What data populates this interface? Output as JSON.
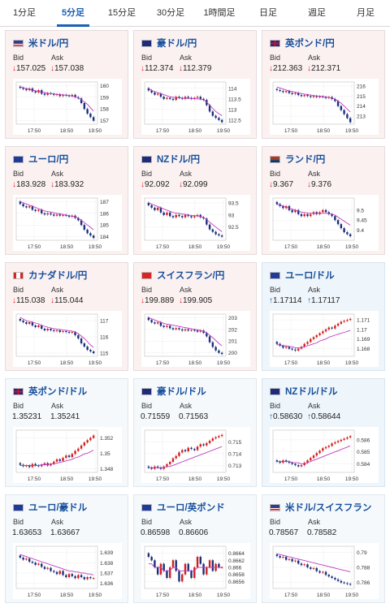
{
  "tabs": [
    "1分足",
    "5分足",
    "15分足",
    "30分足",
    "1時間足",
    "日足",
    "週足",
    "月足"
  ],
  "active_tab": 1,
  "time_labels": [
    "17:50",
    "18:50",
    "19:50"
  ],
  "labels": {
    "bid": "Bid",
    "ask": "Ask"
  },
  "colors": {
    "down_card": "#fbf1f1",
    "up_card": "#eef5fb",
    "candle_up": "#d21f1f",
    "candle_down": "#1c2f7a",
    "ma": "#c03cc0",
    "ma2": "#3a89d0"
  },
  "cards": [
    {
      "name": "米ドル/円",
      "flag": "flag-us",
      "trend": "down",
      "bid": "157.025",
      "ask": "157.038",
      "ticks": [
        "160",
        "159",
        "158",
        "157"
      ],
      "chart_data": {
        "type": "candlestick",
        "ylim": [
          156.7,
          160.3
        ],
        "closes": [
          159.8,
          159.7,
          159.6,
          159.75,
          159.5,
          159.4,
          159.6,
          159.3,
          159.2,
          159.35,
          159.3,
          159.2,
          159.25,
          159.1,
          159.2,
          159.15,
          159.1,
          159.2,
          159.0,
          158.9,
          158.5,
          158.0,
          157.6,
          157.3,
          157.0
        ],
        "ma": [
          159.9,
          159.8,
          159.75,
          159.7,
          159.6,
          159.55,
          159.5,
          159.45,
          159.4,
          159.35,
          159.3,
          159.28,
          159.25,
          159.22,
          159.2,
          159.18,
          159.15,
          159.1,
          159.05,
          158.95,
          158.8,
          158.6,
          158.4,
          158.1,
          157.8
        ]
      }
    },
    {
      "name": "豪ドル/円",
      "flag": "flag-au",
      "trend": "down",
      "bid": "112.374",
      "ask": "112.379",
      "ticks": [
        "114",
        "113.5",
        "113",
        "112.5"
      ],
      "chart_data": {
        "type": "candlestick",
        "ylim": [
          112.3,
          114.3
        ],
        "closes": [
          113.9,
          113.8,
          113.7,
          113.75,
          113.6,
          113.5,
          113.55,
          113.5,
          113.45,
          113.6,
          113.55,
          113.5,
          113.6,
          113.55,
          113.5,
          113.55,
          113.6,
          113.5,
          113.45,
          113.2,
          112.9,
          112.7,
          112.6,
          112.5,
          112.4
        ],
        "ma": [
          114.0,
          113.9,
          113.85,
          113.8,
          113.75,
          113.7,
          113.65,
          113.6,
          113.58,
          113.56,
          113.55,
          113.54,
          113.53,
          113.52,
          113.52,
          113.51,
          113.5,
          113.48,
          113.45,
          113.35,
          113.2,
          113.05,
          112.9,
          112.8,
          112.7
        ]
      }
    },
    {
      "name": "英ポンド/円",
      "flag": "flag-gb",
      "trend": "down",
      "bid": "212.363",
      "ask": "212.371",
      "ticks": [
        "216",
        "215",
        "214",
        "213"
      ],
      "chart_data": {
        "type": "candlestick",
        "ylim": [
          212.2,
          216.4
        ],
        "closes": [
          215.6,
          215.5,
          215.4,
          215.5,
          215.3,
          215.2,
          215.3,
          215.1,
          215.0,
          215.1,
          215.0,
          214.9,
          215.0,
          214.9,
          214.95,
          214.9,
          214.8,
          214.9,
          214.7,
          214.5,
          214.0,
          213.6,
          213.2,
          212.8,
          212.4
        ],
        "ma": [
          215.9,
          215.8,
          215.7,
          215.6,
          215.5,
          215.45,
          215.4,
          215.3,
          215.25,
          215.2,
          215.15,
          215.1,
          215.05,
          215.0,
          215.0,
          214.95,
          214.9,
          214.85,
          214.8,
          214.7,
          214.5,
          214.3,
          214.0,
          213.7,
          213.4
        ]
      }
    },
    {
      "name": "ユーロ/円",
      "flag": "flag-eu",
      "trend": "down",
      "bid": "183.928",
      "ask": "183.932",
      "ticks": [
        "187",
        "186",
        "185",
        "184"
      ],
      "chart_data": {
        "type": "candlestick",
        "ylim": [
          183.7,
          187.3
        ],
        "closes": [
          186.8,
          186.6,
          186.5,
          186.6,
          186.3,
          186.2,
          186.3,
          186.0,
          185.9,
          186.0,
          185.9,
          185.8,
          185.9,
          185.8,
          185.85,
          185.8,
          185.7,
          185.8,
          185.6,
          185.4,
          185.0,
          184.6,
          184.3,
          184.1,
          183.9
        ],
        "ma": [
          187.0,
          186.9,
          186.8,
          186.7,
          186.6,
          186.5,
          186.4,
          186.3,
          186.2,
          186.15,
          186.1,
          186.05,
          186.0,
          185.95,
          185.9,
          185.85,
          185.8,
          185.75,
          185.7,
          185.6,
          185.4,
          185.2,
          185.0,
          184.8,
          184.6
        ]
      }
    },
    {
      "name": "NZドル/円",
      "flag": "flag-nz",
      "trend": "down",
      "bid": "92.092",
      "ask": "92.099",
      "ticks": [
        "93.5",
        "93",
        "92.5"
      ],
      "chart_data": {
        "type": "candlestick",
        "ylim": [
          91.95,
          93.7
        ],
        "closes": [
          93.4,
          93.3,
          93.2,
          93.3,
          93.1,
          93.0,
          93.1,
          92.95,
          92.9,
          93.0,
          92.95,
          92.9,
          93.0,
          92.95,
          92.9,
          92.95,
          93.0,
          92.9,
          92.85,
          92.6,
          92.4,
          92.3,
          92.2,
          92.15,
          92.1
        ],
        "ma": [
          93.5,
          93.45,
          93.4,
          93.35,
          93.3,
          93.25,
          93.2,
          93.15,
          93.1,
          93.08,
          93.06,
          93.04,
          93.02,
          93.0,
          92.98,
          92.97,
          92.96,
          92.94,
          92.9,
          92.8,
          92.7,
          92.6,
          92.5,
          92.4,
          92.3
        ]
      }
    },
    {
      "name": "ランド/円",
      "flag": "flag-za",
      "trend": "down",
      "bid": "9.367",
      "ask": "9.376",
      "ticks": [
        "9.5",
        "9.45",
        "9.4"
      ],
      "chart_data": {
        "type": "candlestick",
        "ylim": [
          9.35,
          9.56
        ],
        "closes": [
          9.53,
          9.52,
          9.51,
          9.52,
          9.5,
          9.49,
          9.5,
          9.48,
          9.47,
          9.48,
          9.47,
          9.48,
          9.49,
          9.48,
          9.49,
          9.5,
          9.49,
          9.48,
          9.47,
          9.45,
          9.43,
          9.41,
          9.39,
          9.38,
          9.37
        ],
        "ma": [
          9.53,
          9.525,
          9.52,
          9.515,
          9.51,
          9.505,
          9.5,
          9.495,
          9.49,
          9.488,
          9.486,
          9.485,
          9.484,
          9.483,
          9.483,
          9.484,
          9.484,
          9.483,
          9.48,
          9.475,
          9.465,
          9.455,
          9.445,
          9.435,
          9.425
        ]
      }
    },
    {
      "name": "カナダドル/円",
      "flag": "flag-ca",
      "trend": "down",
      "bid": "115.038",
      "ask": "115.044",
      "ticks": [
        "117",
        "116",
        "115"
      ],
      "chart_data": {
        "type": "candlestick",
        "ylim": [
          114.8,
          117.4
        ],
        "closes": [
          117.0,
          116.9,
          116.8,
          116.9,
          116.7,
          116.6,
          116.7,
          116.5,
          116.4,
          116.5,
          116.4,
          116.35,
          116.4,
          116.3,
          116.35,
          116.3,
          116.25,
          116.3,
          116.1,
          115.9,
          115.6,
          115.4,
          115.2,
          115.1,
          115.0
        ],
        "ma": [
          117.2,
          117.1,
          117.0,
          116.95,
          116.9,
          116.85,
          116.8,
          116.7,
          116.65,
          116.6,
          116.55,
          116.5,
          116.48,
          116.45,
          116.42,
          116.4,
          116.38,
          116.35,
          116.3,
          116.2,
          116.05,
          115.9,
          115.7,
          115.5,
          115.35
        ]
      }
    },
    {
      "name": "スイスフラン/円",
      "flag": "flag-ch",
      "trend": "down",
      "bid": "199.889",
      "ask": "199.905",
      "ticks": [
        "203",
        "202",
        "201",
        "200"
      ],
      "chart_data": {
        "type": "candlestick",
        "ylim": [
          199.7,
          203.3
        ],
        "closes": [
          202.8,
          202.6,
          202.5,
          202.6,
          202.3,
          202.2,
          202.3,
          202.1,
          202.0,
          202.1,
          202.0,
          201.9,
          202.0,
          201.9,
          201.95,
          201.9,
          201.8,
          201.9,
          201.7,
          201.4,
          200.9,
          200.5,
          200.2,
          200.0,
          199.9
        ],
        "ma": [
          203.0,
          202.9,
          202.8,
          202.7,
          202.6,
          202.5,
          202.45,
          202.4,
          202.35,
          202.3,
          202.25,
          202.2,
          202.15,
          202.1,
          202.05,
          202.0,
          201.95,
          201.9,
          201.85,
          201.7,
          201.5,
          201.3,
          201.05,
          200.8,
          200.6
        ]
      }
    },
    {
      "name": "ユーロ/ドル",
      "flag": "flag-eu",
      "trend": "up",
      "bid": "1.17114",
      "ask": "1.17117",
      "ticks": [
        "1.171",
        "1.17",
        "1.169",
        "1.168"
      ],
      "chart_data": {
        "type": "candlestick",
        "ylim": [
          1.1672,
          1.1716
        ],
        "closes": [
          1.1685,
          1.1683,
          1.1681,
          1.1682,
          1.168,
          1.1679,
          1.1678,
          1.168,
          1.1682,
          1.1685,
          1.1687,
          1.169,
          1.1692,
          1.1694,
          1.1696,
          1.1698,
          1.17,
          1.1702,
          1.1701,
          1.1704,
          1.1706,
          1.1708,
          1.1709,
          1.171,
          1.1711
        ],
        "ma": [
          1.1684,
          1.1684,
          1.1683,
          1.1683,
          1.1682,
          1.1682,
          1.1681,
          1.1681,
          1.1681,
          1.1682,
          1.1683,
          1.1684,
          1.1685,
          1.1686,
          1.1688,
          1.1689,
          1.169,
          1.1692,
          1.1693,
          1.1694,
          1.1695,
          1.1696,
          1.1697,
          1.1698,
          1.1699
        ]
      }
    },
    {
      "name": "英ポンド/ドル",
      "flag": "flag-gb",
      "trend": "flat",
      "bid": "1.35231",
      "ask": "1.35241",
      "ticks": [
        "1.352",
        "1.35",
        "1.348"
      ],
      "chart_data": {
        "type": "candlestick",
        "ylim": [
          1.3475,
          1.353
        ],
        "closes": [
          1.3485,
          1.3483,
          1.3484,
          1.3482,
          1.3486,
          1.3484,
          1.3483,
          1.3485,
          1.3487,
          1.3484,
          1.3486,
          1.3489,
          1.3492,
          1.349,
          1.3494,
          1.3497,
          1.3495,
          1.3499,
          1.3503,
          1.3506,
          1.351,
          1.3514,
          1.3517,
          1.352,
          1.3523
        ],
        "ma": [
          1.3484,
          1.3484,
          1.3484,
          1.3484,
          1.3484,
          1.3484,
          1.3484,
          1.3485,
          1.3485,
          1.3485,
          1.3486,
          1.3486,
          1.3487,
          1.3488,
          1.3489,
          1.349,
          1.3491,
          1.3492,
          1.3494,
          1.3495,
          1.3497,
          1.3499,
          1.35,
          1.3502,
          1.3504
        ]
      }
    },
    {
      "name": "豪ドル/ドル",
      "flag": "flag-au",
      "trend": "flat",
      "bid": "0.71559",
      "ask": "0.71563",
      "ticks": [
        "0.715",
        "0.714",
        "0.713"
      ],
      "chart_data": {
        "type": "candlestick",
        "ylim": [
          0.7124,
          0.716
        ],
        "closes": [
          0.7128,
          0.7127,
          0.7129,
          0.7128,
          0.7127,
          0.7129,
          0.7131,
          0.7133,
          0.7136,
          0.7138,
          0.7141,
          0.7143,
          0.7142,
          0.7145,
          0.7144,
          0.7143,
          0.7146,
          0.7148,
          0.7147,
          0.7149,
          0.7151,
          0.7153,
          0.7154,
          0.7155,
          0.7156
        ],
        "ma": [
          0.7128,
          0.7128,
          0.7128,
          0.7128,
          0.7128,
          0.7128,
          0.7129,
          0.7129,
          0.713,
          0.7131,
          0.7132,
          0.7133,
          0.7134,
          0.7135,
          0.7136,
          0.7137,
          0.7138,
          0.7139,
          0.714,
          0.7141,
          0.7142,
          0.7143,
          0.7144,
          0.7145,
          0.7146
        ]
      }
    },
    {
      "name": "NZドル/ドル",
      "flag": "flag-nz",
      "trend": "up",
      "bid": "0.58630",
      "ask": "0.58644",
      "ticks": [
        "0.586",
        "0.585",
        "0.584"
      ],
      "chart_data": {
        "type": "candlestick",
        "ylim": [
          0.5833,
          0.5868
        ],
        "closes": [
          0.5842,
          0.5841,
          0.5843,
          0.5842,
          0.5841,
          0.584,
          0.5839,
          0.5838,
          0.5839,
          0.5841,
          0.5843,
          0.5845,
          0.5847,
          0.5849,
          0.5851,
          0.5853,
          0.5854,
          0.5855,
          0.5857,
          0.5858,
          0.5859,
          0.586,
          0.5861,
          0.5862,
          0.5863
        ],
        "ma": [
          0.5842,
          0.5842,
          0.5842,
          0.5842,
          0.5842,
          0.5841,
          0.5841,
          0.5841,
          0.584,
          0.584,
          0.5841,
          0.5842,
          0.5843,
          0.5844,
          0.5845,
          0.5846,
          0.5847,
          0.5848,
          0.5849,
          0.585,
          0.5851,
          0.5852,
          0.5853,
          0.5854,
          0.5855
        ]
      }
    },
    {
      "name": "ユーロ/豪ドル",
      "flag": "flag-eu",
      "trend": "flat",
      "bid": "1.63653",
      "ask": "1.63667",
      "ticks": [
        "1.639",
        "1.638",
        "1.637",
        "1.636"
      ],
      "chart_data": {
        "type": "candlestick",
        "ylim": [
          1.6355,
          1.6396
        ],
        "closes": [
          1.6385,
          1.6383,
          1.6384,
          1.6381,
          1.638,
          1.6378,
          1.6379,
          1.6376,
          1.6374,
          1.6375,
          1.6372,
          1.6371,
          1.6369,
          1.6372,
          1.6368,
          1.6366,
          1.6369,
          1.6367,
          1.6365,
          1.6368,
          1.6366,
          1.6364,
          1.6366,
          1.6365,
          1.6365
        ],
        "ma": [
          1.6388,
          1.6387,
          1.6386,
          1.6385,
          1.6384,
          1.6383,
          1.6382,
          1.6381,
          1.638,
          1.6379,
          1.6378,
          1.6377,
          1.6376,
          1.6375,
          1.6374,
          1.6373,
          1.6372,
          1.6372,
          1.6371,
          1.6371,
          1.637,
          1.637,
          1.6369,
          1.6369,
          1.6368
        ]
      }
    },
    {
      "name": "ユーロ/英ポンド",
      "flag": "flag-eu",
      "trend": "flat",
      "bid": "0.86598",
      "ask": "0.86606",
      "ticks": [
        "0.8664",
        "0.8662",
        "0.866",
        "0.8658",
        "0.8656"
      ],
      "chart_data": {
        "type": "candlestick",
        "ylim": [
          0.8654,
          0.8666
        ],
        "closes": [
          0.8663,
          0.8662,
          0.866,
          0.8658,
          0.8661,
          0.8659,
          0.8657,
          0.866,
          0.8662,
          0.8659,
          0.8656,
          0.8658,
          0.8661,
          0.8659,
          0.8657,
          0.866,
          0.8663,
          0.8661,
          0.8658,
          0.866,
          0.8662,
          0.8659,
          0.8661,
          0.866,
          0.866
        ],
        "ma": [
          0.8661,
          0.8661,
          0.866,
          0.866,
          0.866,
          0.8659,
          0.8659,
          0.8659,
          0.866,
          0.866,
          0.8659,
          0.8659,
          0.8659,
          0.8659,
          0.8659,
          0.8659,
          0.866,
          0.866,
          0.866,
          0.866,
          0.866,
          0.866,
          0.866,
          0.866,
          0.866
        ]
      }
    },
    {
      "name": "米ドル/スイスフラン",
      "flag": "flag-us",
      "trend": "flat",
      "bid": "0.78567",
      "ask": "0.78582",
      "ticks": [
        "0.79",
        "0.788",
        "0.786"
      ],
      "chart_data": {
        "type": "candlestick",
        "ylim": [
          0.7852,
          0.7908
        ],
        "closes": [
          0.7895,
          0.7893,
          0.7894,
          0.789,
          0.7891,
          0.7888,
          0.7889,
          0.7885,
          0.7883,
          0.7884,
          0.788,
          0.7878,
          0.7879,
          0.7875,
          0.7873,
          0.7874,
          0.787,
          0.7868,
          0.7866,
          0.7864,
          0.7862,
          0.786,
          0.7859,
          0.7858,
          0.7857
        ],
        "ma": [
          0.7898,
          0.7897,
          0.7896,
          0.7895,
          0.7894,
          0.7893,
          0.7892,
          0.7891,
          0.789,
          0.7889,
          0.7888,
          0.7887,
          0.7886,
          0.7885,
          0.7884,
          0.7883,
          0.7882,
          0.7881,
          0.788,
          0.7879,
          0.7878,
          0.7877,
          0.7876,
          0.7875,
          0.7874
        ]
      }
    }
  ]
}
